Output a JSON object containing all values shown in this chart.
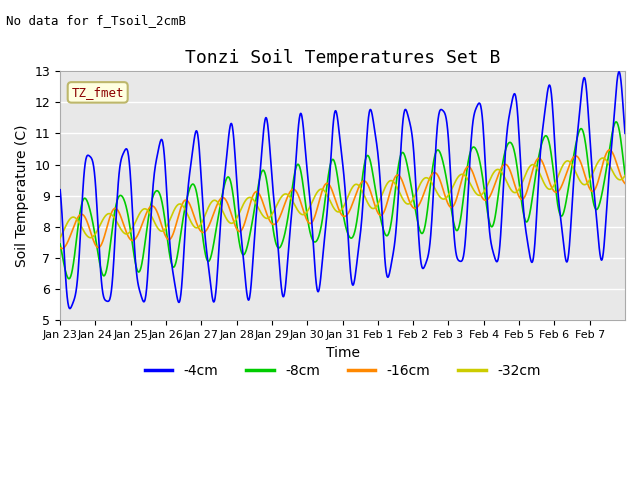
{
  "title": "Tonzi Soil Temperatures Set B",
  "xlabel": "Time",
  "ylabel": "Soil Temperature (C)",
  "no_data_text": "No data for f_Tsoil_2cmB",
  "tz_fmet_label": "TZ_fmet",
  "ylim": [
    5.0,
    13.0
  ],
  "yticks": [
    5.0,
    6.0,
    7.0,
    8.0,
    9.0,
    10.0,
    11.0,
    12.0,
    13.0
  ],
  "xtick_labels": [
    "Jan 23",
    "Jan 24",
    "Jan 25",
    "Jan 26",
    "Jan 27",
    "Jan 28",
    "Jan 29",
    "Jan 30",
    "Jan 31",
    "Feb 1",
    "Feb 2",
    "Feb 3",
    "Feb 4",
    "Feb 5",
    "Feb 6",
    "Feb 7"
  ],
  "colors": {
    "4cm": "#0000FF",
    "8cm": "#00CC00",
    "16cm": "#FF8800",
    "32cm": "#CCCC00"
  },
  "legend_labels": [
    "-4cm",
    "-8cm",
    "-16cm",
    "-32cm"
  ],
  "background_color": "#E8E8E8",
  "title_fontsize": 13,
  "label_fontsize": 10
}
